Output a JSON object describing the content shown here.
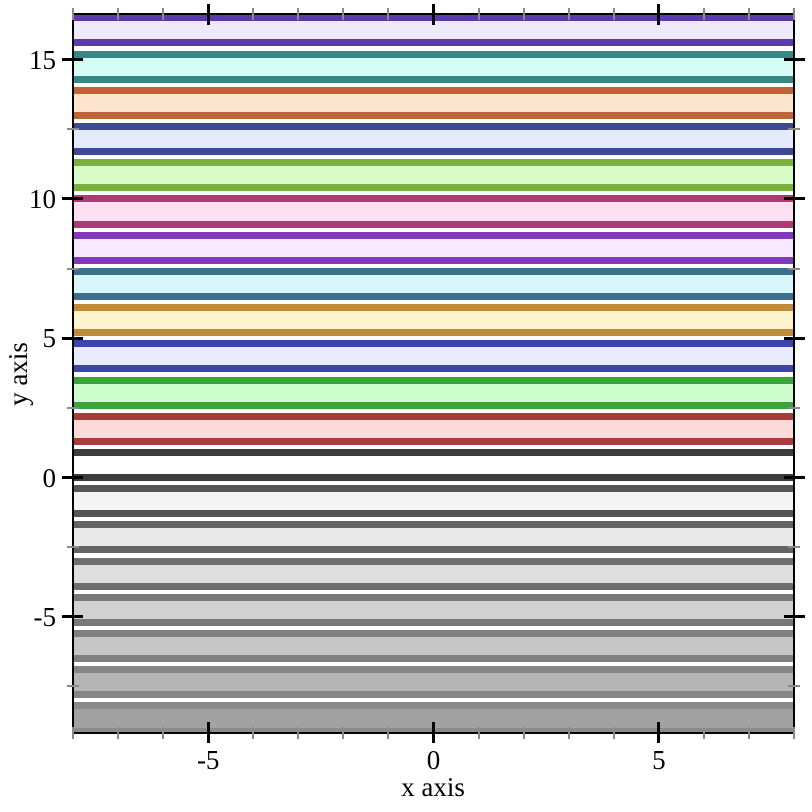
{
  "style": {
    "background": "#ffffff",
    "axis_color": "#000000",
    "major_tick_color": "#000000",
    "minor_tick_color": "#8a8a8a",
    "text_color": "#000000"
  },
  "chart_data": {
    "type": "area",
    "subtype": "horizontal-interval-bands",
    "title": "",
    "xlabel": "x axis",
    "ylabel": "y axis",
    "x_range": [
      -8,
      8
    ],
    "y_range": [
      -9.17,
      16.64
    ],
    "grid": false,
    "legend": "none",
    "x_major_ticks": [
      {
        "v": -5,
        "label": "-5"
      },
      {
        "v": 0,
        "label": "0"
      },
      {
        "v": 5,
        "label": "5"
      }
    ],
    "x_minor_ticks": [
      -8,
      -7,
      -6,
      -4,
      -3,
      -2,
      -1,
      1,
      2,
      3,
      4,
      6,
      7,
      8
    ],
    "y_major_ticks": [
      {
        "v": -5,
        "label": "-5"
      },
      {
        "v": 0,
        "label": "0"
      },
      {
        "v": 5,
        "label": "5"
      },
      {
        "v": 10,
        "label": "10"
      },
      {
        "v": 15,
        "label": "15"
      }
    ],
    "y_minor_ticks": [
      -7.5,
      -2.5,
      2.5,
      7.5,
      12.5
    ],
    "bands": [
      {
        "index": -7,
        "y0": -9.1,
        "y1": -8.2,
        "line_color": "#8b8b8b",
        "fill_color": "#a2a2a2"
      },
      {
        "index": -6,
        "y0": -7.8,
        "y1": -6.9,
        "line_color": "#868686",
        "fill_color": "#b5b5b5"
      },
      {
        "index": -5,
        "y0": -6.5,
        "y1": -5.6,
        "line_color": "#808080",
        "fill_color": "#c6c6c6"
      },
      {
        "index": -4,
        "y0": -5.2,
        "y1": -4.3,
        "line_color": "#787878",
        "fill_color": "#d2d2d2"
      },
      {
        "index": -3,
        "y0": -3.9,
        "y1": -3.0,
        "line_color": "#6e6e6e",
        "fill_color": "#dedede"
      },
      {
        "index": -2,
        "y0": -2.6,
        "y1": -1.7,
        "line_color": "#646464",
        "fill_color": "#e9e9e9"
      },
      {
        "index": -1,
        "y0": -1.3,
        "y1": -0.4,
        "line_color": "#555555",
        "fill_color": "#f4f4f4"
      },
      {
        "index": 0,
        "y0": 0.0,
        "y1": 0.9,
        "line_color": "#3c3c3c",
        "fill_color": "#ffffff"
      },
      {
        "index": 1,
        "y0": 1.3,
        "y1": 2.2,
        "line_color": "#a83b3b",
        "fill_color": "#fcdada"
      },
      {
        "index": 2,
        "y0": 2.6,
        "y1": 3.5,
        "line_color": "#3aa33a",
        "fill_color": "#cdfccd"
      },
      {
        "index": 3,
        "y0": 3.9,
        "y1": 4.8,
        "line_color": "#3c44aa",
        "fill_color": "#e7ebfc"
      },
      {
        "index": 4,
        "y0": 5.2,
        "y1": 6.1,
        "line_color": "#c08a38",
        "fill_color": "#fdf3cd"
      },
      {
        "index": 5,
        "y0": 6.5,
        "y1": 7.4,
        "line_color": "#3c6e8e",
        "fill_color": "#d9f6fd"
      },
      {
        "index": 6,
        "y0": 7.8,
        "y1": 8.7,
        "line_color": "#8238bc",
        "fill_color": "#f6e9fe"
      },
      {
        "index": 7,
        "y0": 9.1,
        "y1": 10.0,
        "line_color": "#b03874",
        "fill_color": "#fcdff0"
      },
      {
        "index": 8,
        "y0": 10.4,
        "y1": 11.3,
        "line_color": "#7ab03c",
        "fill_color": "#d9fcc7"
      },
      {
        "index": 9,
        "y0": 11.7,
        "y1": 12.6,
        "line_color": "#3e4992",
        "fill_color": "#e4ecfc"
      },
      {
        "index": 10,
        "y0": 13.0,
        "y1": 13.9,
        "line_color": "#be6436",
        "fill_color": "#fde4cf"
      },
      {
        "index": 11,
        "y0": 14.3,
        "y1": 15.2,
        "line_color": "#388686",
        "fill_color": "#d5fcf5"
      },
      {
        "index": 12,
        "y0": 15.6,
        "y1": 16.5,
        "line_color": "#5c3aad",
        "fill_color": "#efe9fc"
      }
    ]
  }
}
